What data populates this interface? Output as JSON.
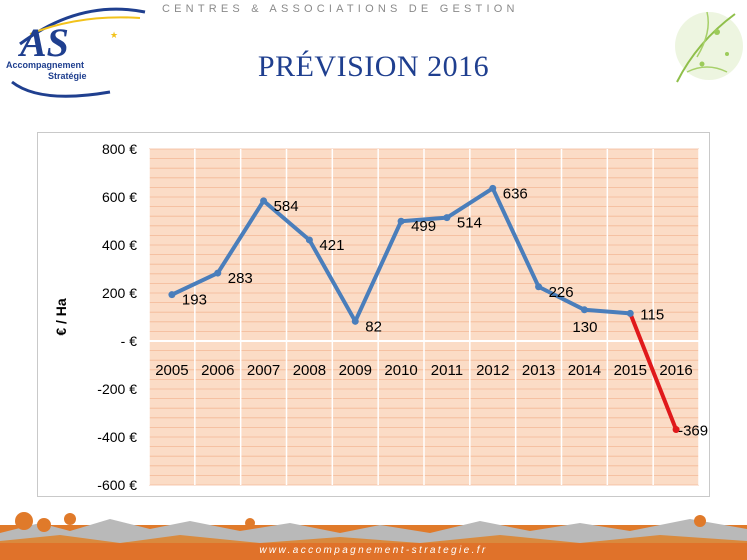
{
  "header": {
    "tagline": "CENTRES & ASSOCIATIONS DE GESTION",
    "logo_letters": "AS",
    "logo_line1": "Accompagnement",
    "logo_line2": "Stratégie",
    "title": "PRÉVISION 2016"
  },
  "footer": {
    "url": "www.accompagnement-strategie.fr"
  },
  "colors": {
    "title": "#1f3f8f",
    "series_main": "#4a7ebb",
    "series_forecast": "#e0191b",
    "plot_background": "#fbdcc6",
    "grid": "#f3b896"
  },
  "chart_data": {
    "type": "line",
    "title": "",
    "xlabel": "",
    "ylabel": "€ / Ha",
    "ylim": [
      -600,
      800
    ],
    "yticks": [
      {
        "value": 800,
        "label": "800 €"
      },
      {
        "value": 600,
        "label": "600 €"
      },
      {
        "value": 400,
        "label": "400 €"
      },
      {
        "value": 200,
        "label": "200 €"
      },
      {
        "value": 0,
        "label": "- €"
      },
      {
        "value": -200,
        "label": "-200 €"
      },
      {
        "value": -400,
        "label": "-400 €"
      },
      {
        "value": -600,
        "label": "-600 €"
      }
    ],
    "categories": [
      "2005",
      "2006",
      "2007",
      "2008",
      "2009",
      "2010",
      "2011",
      "2012",
      "2013",
      "2014",
      "2015",
      "2016"
    ],
    "values": [
      193,
      283,
      584,
      421,
      82,
      499,
      514,
      636,
      226,
      130,
      115,
      -369
    ],
    "data_labels": [
      "193",
      "283",
      "584",
      "421",
      "82",
      "499",
      "514",
      "636",
      "226",
      "130",
      "115",
      "-369"
    ],
    "forecast_from_index": 10,
    "grid": true,
    "legend": "none"
  }
}
